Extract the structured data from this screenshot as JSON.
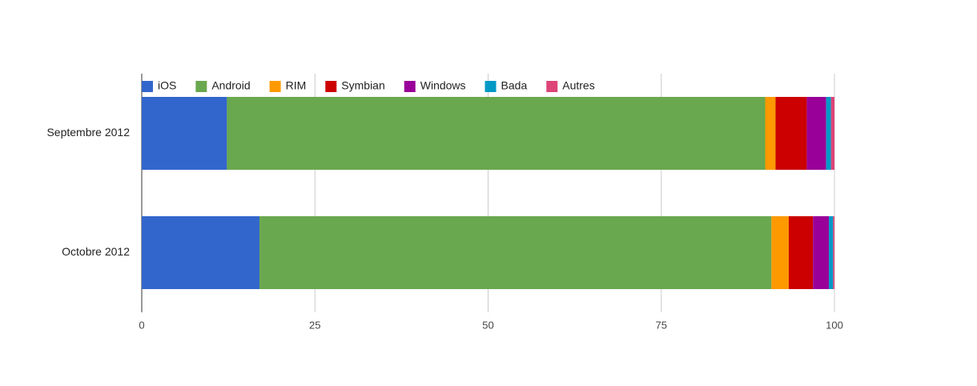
{
  "chart_data": {
    "type": "stacked-bar-horizontal",
    "categories": [
      "Septembre 2012",
      "Octobre 2012"
    ],
    "series": [
      {
        "name": "iOS",
        "color": "#3366cc",
        "values": [
          12.3,
          17.0
        ]
      },
      {
        "name": "Android",
        "color": "#6aa84f",
        "values": [
          77.7,
          73.9
        ]
      },
      {
        "name": "RIM",
        "color": "#ff9900",
        "values": [
          1.5,
          2.5
        ]
      },
      {
        "name": "Symbian",
        "color": "#cc0000",
        "values": [
          4.5,
          3.5
        ]
      },
      {
        "name": "Windows",
        "color": "#990099",
        "values": [
          2.8,
          2.3
        ]
      },
      {
        "name": "Bada",
        "color": "#0099c6",
        "values": [
          0.7,
          0.6
        ]
      },
      {
        "name": "Autres",
        "color": "#dd4477",
        "values": [
          0.5,
          0.2
        ]
      }
    ],
    "xlim": [
      0,
      100
    ],
    "xticks": [
      0,
      25,
      50,
      75,
      100
    ],
    "grid": true,
    "legend": "top"
  }
}
